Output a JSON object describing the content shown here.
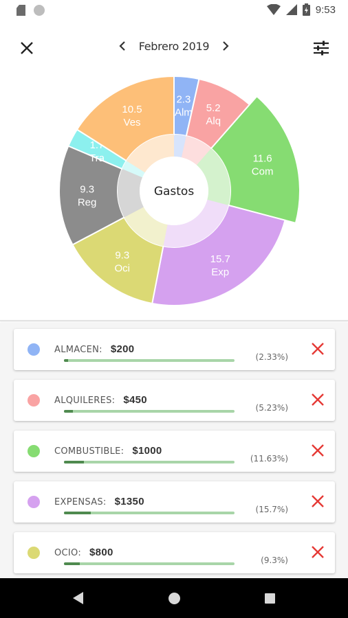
{
  "status": {
    "time": "9:53"
  },
  "header": {
    "month": "Febrero 2019"
  },
  "chart_data": {
    "type": "pie",
    "center_label": "Gastos",
    "slices": [
      {
        "value": 2.3,
        "abbr": "Alm",
        "color": "#90b4f5"
      },
      {
        "value": 5.2,
        "abbr": "Alq",
        "color": "#f9a3a3"
      },
      {
        "value": 11.6,
        "abbr": "Com",
        "color": "#86dc72"
      },
      {
        "value": 15.7,
        "abbr": "Exp",
        "color": "#d5a1ef"
      },
      {
        "value": 9.3,
        "abbr": "Oci",
        "color": "#dbd974"
      },
      {
        "value": 9.3,
        "abbr": "Reg",
        "color": "#8c8c8c"
      },
      {
        "value": 1.7,
        "abbr": "Tra",
        "color": "#8cf0ee"
      },
      {
        "value": 10.5,
        "abbr": "Ves",
        "color": "#fdbf78"
      }
    ]
  },
  "expenses": [
    {
      "name": "ALMACEN:",
      "amount": "$200",
      "percent": "(2.33%)",
      "pct": 2.33,
      "color": "#90b4f5"
    },
    {
      "name": "ALQUILERES:",
      "amount": "$450",
      "percent": "(5.23%)",
      "pct": 5.23,
      "color": "#f9a3a3"
    },
    {
      "name": "COMBUSTIBLE:",
      "amount": "$1000",
      "percent": "(11.63%)",
      "pct": 11.63,
      "color": "#86dc72"
    },
    {
      "name": "EXPENSAS:",
      "amount": "$1350",
      "percent": "(15.7%)",
      "pct": 15.7,
      "color": "#d5a1ef"
    },
    {
      "name": "OCIO:",
      "amount": "$800",
      "percent": "(9.3%)",
      "pct": 9.3,
      "color": "#dbd974"
    }
  ]
}
